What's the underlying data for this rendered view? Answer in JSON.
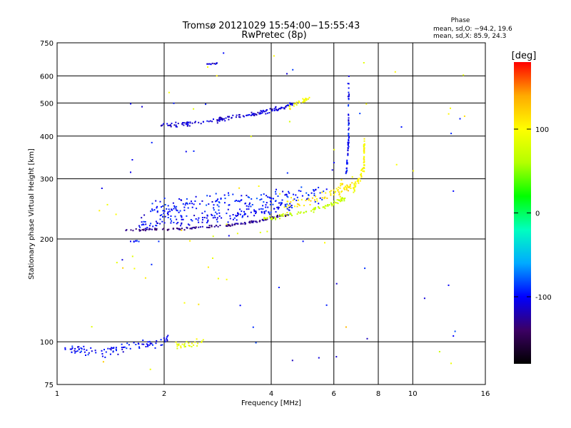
{
  "chart_data": {
    "type": "scatter",
    "title": "Tromsø 20121029 15:54:00−15:55:43",
    "subtitle": "RwPretec (8p)",
    "xlabel": "Frequency [MHz]",
    "ylabel": "Stationary phase Virtual Height [km]",
    "x_scale": "log",
    "y_scale": "log",
    "xlim": [
      1,
      16
    ],
    "ylim": [
      75,
      750
    ],
    "x_ticks": [
      1,
      2,
      4,
      6,
      8,
      10,
      16
    ],
    "y_ticks": [
      75,
      100,
      200,
      300,
      400,
      500,
      600,
      750
    ],
    "grid": true,
    "phase_stats": {
      "heading": "Phase",
      "o_mode": "mean, sd,O: −94.2, 19.6",
      "x_mode": "mean, sd,X:  85.9, 24.3"
    },
    "colorbar": {
      "label": "[deg]",
      "range": [
        -180,
        180
      ],
      "ticks": [
        -100,
        0,
        100
      ],
      "colormap": [
        "#000000",
        "#3c0064",
        "#0000ff",
        "#00aaff",
        "#00ffbf",
        "#00ff00",
        "#b4ff00",
        "#ffff00",
        "#ffaa00",
        "#ff0000"
      ]
    },
    "traces": [
      {
        "mode": "O",
        "segments": [
          [
            1.05,
            95,
            1.3,
            93
          ],
          [
            1.3,
            93,
            1.65,
            97
          ],
          [
            1.65,
            97,
            2.05,
            101
          ]
        ],
        "phase": -100,
        "spread": 0.025,
        "count": 95
      },
      {
        "mode": "X",
        "segments": [
          [
            2.15,
            97,
            2.6,
            99
          ]
        ],
        "phase": 90,
        "spread": 0.02,
        "count": 28
      },
      {
        "mode": "O",
        "segments": [
          [
            1.55,
            212,
            2.2,
            214
          ],
          [
            2.2,
            214,
            3.0,
            219
          ],
          [
            3.0,
            219,
            3.7,
            226
          ],
          [
            3.7,
            226,
            4.5,
            236
          ]
        ],
        "phase": -130,
        "spread": 0.006,
        "count": 140
      },
      {
        "mode": "O",
        "segments": [
          [
            1.7,
            222,
            3.0,
            232
          ],
          [
            3.0,
            232,
            4.6,
            250
          ]
        ],
        "phase": -100,
        "spread": 0.03,
        "count": 150
      },
      {
        "mode": "O",
        "segments": [
          [
            1.8,
            240,
            3.0,
            258
          ],
          [
            3.0,
            258,
            5.8,
            270
          ]
        ],
        "phase": -95,
        "spread": 0.05,
        "count": 180
      },
      {
        "mode": "X",
        "segments": [
          [
            3.8,
            228,
            4.8,
            238
          ],
          [
            4.8,
            238,
            5.9,
            252
          ],
          [
            5.9,
            252,
            6.5,
            265
          ]
        ],
        "phase": 70,
        "spread": 0.012,
        "count": 90
      },
      {
        "mode": "X",
        "segments": [
          [
            4.3,
            250,
            6.0,
            272
          ],
          [
            6.0,
            272,
            6.8,
            292
          ]
        ],
        "phase": 110,
        "spread": 0.035,
        "count": 80
      },
      {
        "mode": "O",
        "segments": [
          [
            1.95,
            430,
            2.5,
            437
          ],
          [
            2.5,
            437,
            3.2,
            455
          ],
          [
            3.2,
            455,
            3.9,
            472
          ],
          [
            3.9,
            472,
            4.6,
            495
          ]
        ],
        "phase": -110,
        "spread": 0.012,
        "count": 150
      },
      {
        "mode": "X",
        "segments": [
          [
            4.5,
            485,
            5.2,
            522
          ]
        ],
        "phase": 95,
        "spread": 0.012,
        "count": 30
      },
      {
        "mode": "O",
        "segments": [
          [
            6.5,
            300,
            6.6,
            390
          ],
          [
            6.6,
            390,
            6.6,
            600
          ]
        ],
        "phase": -100,
        "spread": 0.02,
        "count": 60
      },
      {
        "mode": "X",
        "segments": [
          [
            6.8,
            280,
            7.3,
            320
          ],
          [
            7.3,
            320,
            7.3,
            390
          ]
        ],
        "phase": 100,
        "spread": 0.025,
        "count": 70
      },
      {
        "mode": "O",
        "segments": [
          [
            2.6,
            650,
            2.85,
            653
          ]
        ],
        "phase": -110,
        "spread": 0.005,
        "count": 10
      },
      {
        "mode": "O",
        "segments": [
          [
            1.6,
            197,
            1.7,
            197
          ]
        ],
        "phase": -100,
        "spread": 0.004,
        "count": 7
      },
      {
        "mode": "mixed",
        "segments": [
          [
            1.2,
            80,
            14,
            700
          ]
        ],
        "phase": "random",
        "spread": 0,
        "count": 90
      }
    ]
  }
}
